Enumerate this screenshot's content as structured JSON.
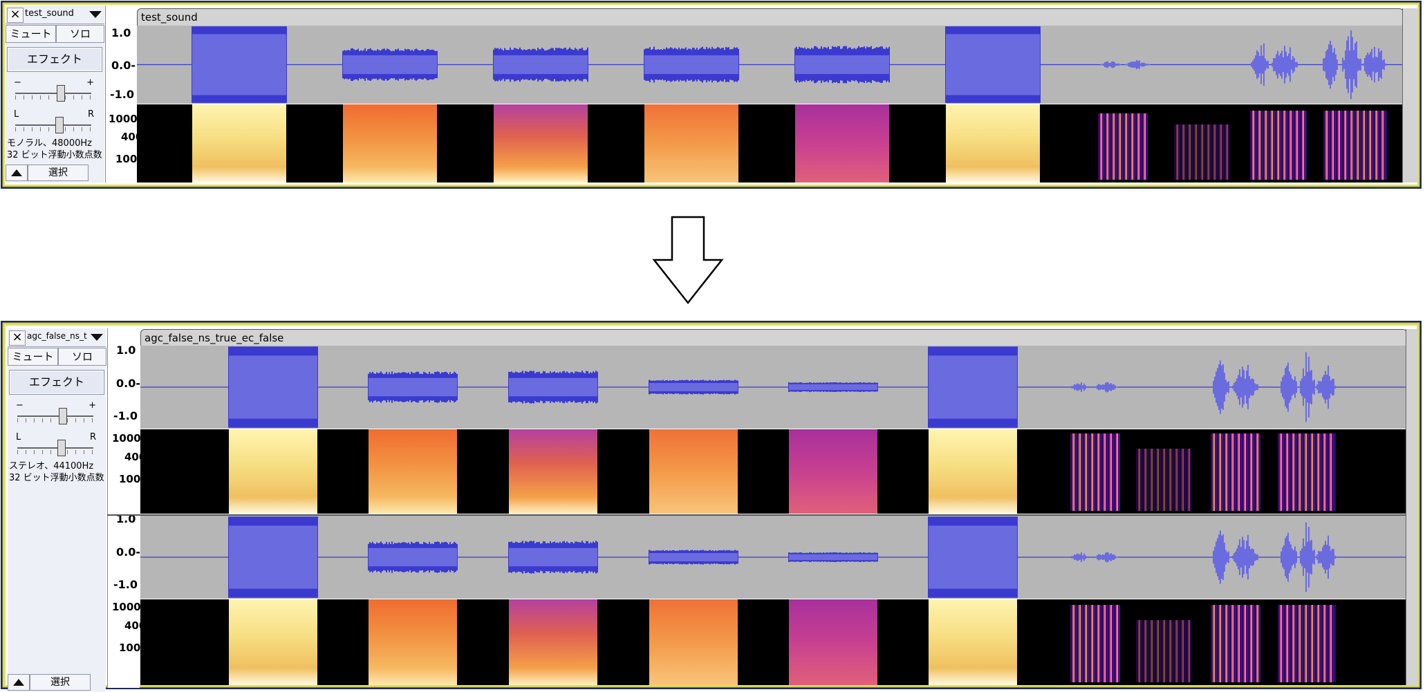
{
  "tracks": [
    {
      "id": "track1",
      "name": "test_sound",
      "clip_title": "test_sound",
      "close_label": "×",
      "mute_label": "ミュート",
      "solo_label": "ソロ",
      "effect_label": "エフェクト",
      "gain_minus": "−",
      "gain_plus": "+",
      "pan_left": "L",
      "pan_right": "R",
      "info_line1": "モノラル、48000Hz",
      "info_line2": "32 ビット浮動小数点数",
      "select_label": "選択",
      "amp_labels": [
        "1.0",
        "0.0-",
        "-1.0"
      ],
      "spec_labels": [
        "1000",
        "400",
        "100"
      ],
      "gain_position": 0.5,
      "pan_position": 0.5
    },
    {
      "id": "track2",
      "name": "agc_false_ns_t",
      "clip_title": "agc_false_ns_true_ec_false",
      "close_label": "×",
      "mute_label": "ミュート",
      "solo_label": "ソロ",
      "effect_label": "エフェクト",
      "gain_minus": "−",
      "gain_plus": "+",
      "pan_left": "L",
      "pan_right": "R",
      "info_line1": "ステレオ、44100Hz",
      "info_line2": "32 ビット浮動小数点数",
      "select_label": "選択",
      "amp_labels": [
        "1.0",
        "0.0-",
        "-1.0"
      ],
      "spec_labels": [
        "1000",
        "400",
        "100"
      ],
      "gain_position": 0.5,
      "pan_position": 0.5
    }
  ],
  "colors": {
    "waveform": "#3a3ad0",
    "waveform_rms": "#6b6be0",
    "clip_background": "#b6b6b6",
    "frame_border": "#cccc44",
    "selected_border": "#2a2a6a"
  },
  "icons": {
    "close": "close-icon",
    "menu": "dropdown-arrow-icon",
    "collapse": "collapse-up-icon",
    "transition": "down-arrow-icon"
  }
}
